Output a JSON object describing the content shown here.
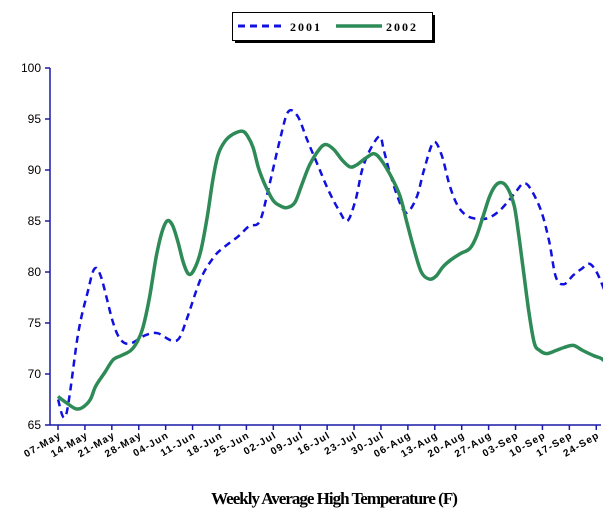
{
  "chart_data": {
    "type": "line",
    "title": "",
    "xlabel": "Weekly Average High Temperature (F)",
    "ylabel": "",
    "ylim": [
      65,
      100
    ],
    "yticks": [
      65,
      70,
      75,
      80,
      85,
      90,
      95,
      100
    ],
    "grid": false,
    "legend_position": "top",
    "categories": [
      "07-May",
      "14-May",
      "21-May",
      "28-May",
      "04-Jun",
      "11-Jun",
      "18-Jun",
      "25-Jun",
      "02-Jul",
      "09-Jul",
      "16-Jul",
      "23-Jul",
      "30-Jul",
      "06-Aug",
      "13-Aug",
      "20-Aug",
      "27-Aug",
      "03-Sep",
      "10-Sep",
      "17-Sep",
      "24-Sep"
    ],
    "series": [
      {
        "name": "2001",
        "color": "#1010e0",
        "style": "dashed",
        "points": [
          [
            0,
            67.5
          ],
          [
            0.3,
            66
          ],
          [
            0.75,
            74
          ],
          [
            1.1,
            78
          ],
          [
            1.35,
            80.3
          ],
          [
            1.6,
            79.5
          ],
          [
            2.05,
            75
          ],
          [
            2.35,
            73.3
          ],
          [
            2.7,
            73
          ],
          [
            3.25,
            73.8
          ],
          [
            3.7,
            74
          ],
          [
            4.2,
            73.3
          ],
          [
            4.5,
            73.5
          ],
          [
            4.8,
            75.5
          ],
          [
            5.3,
            79.3
          ],
          [
            5.8,
            81.5
          ],
          [
            6.2,
            82.5
          ],
          [
            6.7,
            83.5
          ],
          [
            7.1,
            84.5
          ],
          [
            7.5,
            85
          ],
          [
            7.85,
            88.5
          ],
          [
            8.25,
            93
          ],
          [
            8.55,
            95.7
          ],
          [
            8.9,
            95.3
          ],
          [
            9.25,
            93
          ],
          [
            9.65,
            90.5
          ],
          [
            10.05,
            88
          ],
          [
            10.45,
            86
          ],
          [
            10.75,
            85
          ],
          [
            11.05,
            87
          ],
          [
            11.3,
            90
          ],
          [
            11.6,
            92
          ],
          [
            11.95,
            93.3
          ],
          [
            12.1,
            92
          ],
          [
            12.3,
            90
          ],
          [
            12.6,
            87.5
          ],
          [
            12.85,
            86
          ],
          [
            13.05,
            86
          ],
          [
            13.35,
            87.5
          ],
          [
            13.6,
            90
          ],
          [
            13.95,
            92.7
          ],
          [
            14.25,
            91.5
          ],
          [
            14.55,
            88.5
          ],
          [
            14.85,
            86.5
          ],
          [
            15.2,
            85.5
          ],
          [
            15.6,
            85.2
          ],
          [
            16.0,
            85.3
          ],
          [
            16.4,
            86
          ],
          [
            16.75,
            87
          ],
          [
            17.05,
            88
          ],
          [
            17.3,
            88.7
          ],
          [
            17.55,
            88.2
          ],
          [
            17.95,
            86
          ],
          [
            18.25,
            83
          ],
          [
            18.5,
            79.5
          ],
          [
            18.8,
            78.8
          ],
          [
            19.15,
            79.7
          ],
          [
            19.45,
            80.3
          ],
          [
            19.75,
            80.8
          ],
          [
            20.05,
            79.8
          ],
          [
            20.4,
            77.5
          ],
          [
            20.6,
            75.8
          ]
        ]
      },
      {
        "name": "2002",
        "color": "#2e8b57",
        "style": "solid",
        "points": [
          [
            0,
            67.8
          ],
          [
            0.3,
            67.2
          ],
          [
            0.65,
            66.6
          ],
          [
            0.9,
            66.7
          ],
          [
            1.2,
            67.5
          ],
          [
            1.4,
            68.8
          ],
          [
            1.75,
            70.2
          ],
          [
            2.05,
            71.4
          ],
          [
            2.35,
            71.8
          ],
          [
            2.7,
            72.3
          ],
          [
            2.95,
            73.2
          ],
          [
            3.15,
            74.5
          ],
          [
            3.4,
            77.5
          ],
          [
            3.65,
            81.5
          ],
          [
            3.85,
            83.8
          ],
          [
            4.05,
            85.0
          ],
          [
            4.25,
            84.6
          ],
          [
            4.45,
            83.0
          ],
          [
            4.65,
            81.0
          ],
          [
            4.85,
            79.8
          ],
          [
            5.05,
            80.2
          ],
          [
            5.3,
            82.0
          ],
          [
            5.55,
            85.5
          ],
          [
            5.75,
            89.0
          ],
          [
            5.95,
            91.5
          ],
          [
            6.2,
            92.8
          ],
          [
            6.5,
            93.5
          ],
          [
            6.85,
            93.8
          ],
          [
            7.05,
            93.3
          ],
          [
            7.25,
            92.2
          ],
          [
            7.45,
            90.2
          ],
          [
            7.7,
            88.5
          ],
          [
            8.0,
            87.0
          ],
          [
            8.25,
            86.5
          ],
          [
            8.5,
            86.3
          ],
          [
            8.8,
            86.8
          ],
          [
            9.05,
            88.5
          ],
          [
            9.35,
            90.5
          ],
          [
            9.7,
            92.0
          ],
          [
            9.95,
            92.5
          ],
          [
            10.25,
            92.0
          ],
          [
            10.55,
            91.0
          ],
          [
            10.85,
            90.3
          ],
          [
            11.1,
            90.5
          ],
          [
            11.45,
            91.2
          ],
          [
            11.75,
            91.6
          ],
          [
            12.0,
            91.0
          ],
          [
            12.35,
            89.5
          ],
          [
            12.7,
            87.5
          ],
          [
            12.95,
            85.0
          ],
          [
            13.2,
            82.5
          ],
          [
            13.5,
            80.0
          ],
          [
            13.8,
            79.3
          ],
          [
            14.05,
            79.6
          ],
          [
            14.3,
            80.5
          ],
          [
            14.6,
            81.2
          ],
          [
            14.95,
            81.8
          ],
          [
            15.3,
            82.3
          ],
          [
            15.55,
            83.5
          ],
          [
            15.8,
            85.5
          ],
          [
            16.05,
            87.5
          ],
          [
            16.3,
            88.6
          ],
          [
            16.55,
            88.7
          ],
          [
            16.75,
            88.0
          ],
          [
            16.95,
            86.5
          ],
          [
            17.1,
            84.0
          ],
          [
            17.3,
            80.0
          ],
          [
            17.5,
            76.0
          ],
          [
            17.7,
            73.0
          ],
          [
            17.9,
            72.3
          ],
          [
            18.15,
            72.0
          ],
          [
            18.5,
            72.3
          ],
          [
            18.8,
            72.6
          ],
          [
            19.15,
            72.8
          ],
          [
            19.5,
            72.3
          ],
          [
            19.9,
            71.8
          ],
          [
            20.2,
            71.5
          ],
          [
            20.4,
            71.0
          ]
        ]
      }
    ]
  }
}
